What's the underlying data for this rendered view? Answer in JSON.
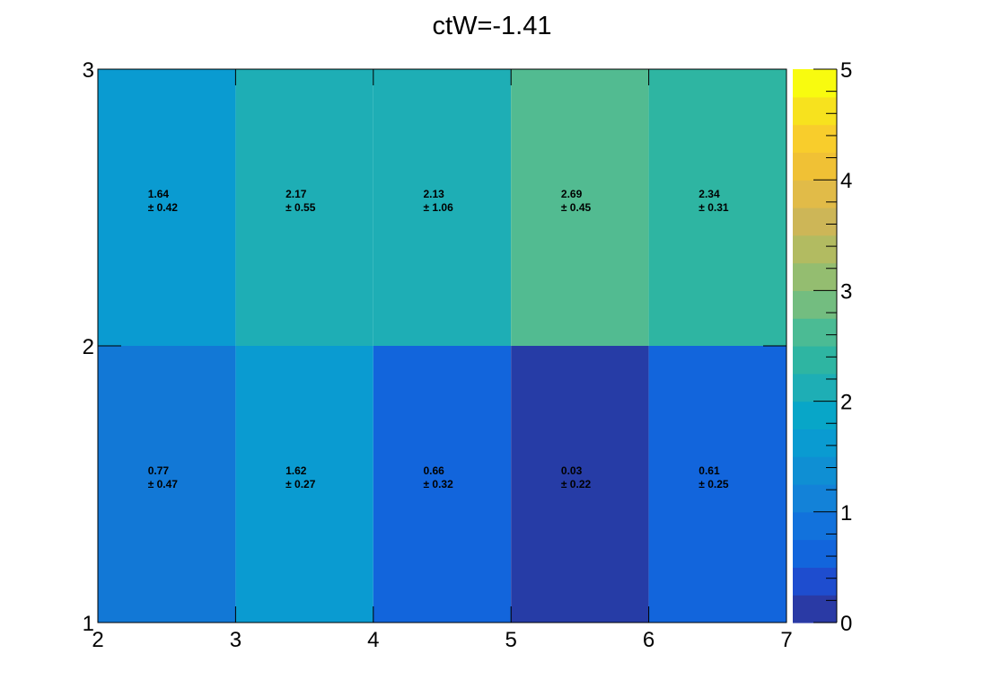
{
  "chart_data": {
    "type": "heatmap",
    "title": "ctW=-1.41",
    "xlabel": "",
    "ylabel": "",
    "x_edges": [
      2,
      3,
      4,
      5,
      6,
      7
    ],
    "y_edges": [
      1,
      2,
      3
    ],
    "x_ticks": [
      "2",
      "3",
      "4",
      "5",
      "6",
      "7"
    ],
    "y_ticks": [
      "1",
      "2",
      "3"
    ],
    "xlim": [
      2,
      7
    ],
    "ylim": [
      1,
      3
    ],
    "zlim": [
      0,
      5
    ],
    "z_ticks": [
      "0",
      "1",
      "2",
      "3",
      "4",
      "5"
    ],
    "grid": false,
    "cells": [
      {
        "x": [
          2,
          3
        ],
        "y": [
          1,
          2
        ],
        "value": "0.77",
        "error": "± 0.47",
        "color": "#1278d6"
      },
      {
        "x": [
          3,
          4
        ],
        "y": [
          1,
          2
        ],
        "value": "1.62",
        "error": "± 0.27",
        "color": "#0a9bd1"
      },
      {
        "x": [
          4,
          5
        ],
        "y": [
          1,
          2
        ],
        "value": "0.66",
        "error": "± 0.32",
        "color": "#1265dc"
      },
      {
        "x": [
          5,
          6
        ],
        "y": [
          1,
          2
        ],
        "value": "0.03",
        "error": "± 0.22",
        "color": "#263ca6"
      },
      {
        "x": [
          6,
          7
        ],
        "y": [
          1,
          2
        ],
        "value": "0.61",
        "error": "± 0.25",
        "color": "#1265dc"
      },
      {
        "x": [
          2,
          3
        ],
        "y": [
          2,
          3
        ],
        "value": "1.64",
        "error": "± 0.42",
        "color": "#0a9bd1"
      },
      {
        "x": [
          3,
          4
        ],
        "y": [
          2,
          3
        ],
        "value": "2.17",
        "error": "± 0.55",
        "color": "#1eaeb5"
      },
      {
        "x": [
          4,
          5
        ],
        "y": [
          2,
          3
        ],
        "value": "2.13",
        "error": "± 1.06",
        "color": "#1eaeb5"
      },
      {
        "x": [
          5,
          6
        ],
        "y": [
          2,
          3
        ],
        "value": "2.69",
        "error": "± 0.45",
        "color": "#52bb91"
      },
      {
        "x": [
          6,
          7
        ],
        "y": [
          2,
          3
        ],
        "value": "2.34",
        "error": "± 0.31",
        "color": "#2eb5a2"
      }
    ],
    "colorbar": {
      "colors": [
        "#2a3aa5",
        "#1e4dcf",
        "#1265dc",
        "#1272dc",
        "#1382d8",
        "#0f8fd3",
        "#0a9bd1",
        "#08a6c8",
        "#1eaeb5",
        "#2eb5a2",
        "#4bbb94",
        "#73bd80",
        "#94bd70",
        "#b2bb61",
        "#cdb657",
        "#e1bb48",
        "#f0c135",
        "#f8cd2c",
        "#f7e21e",
        "#f8fb0f"
      ]
    }
  }
}
